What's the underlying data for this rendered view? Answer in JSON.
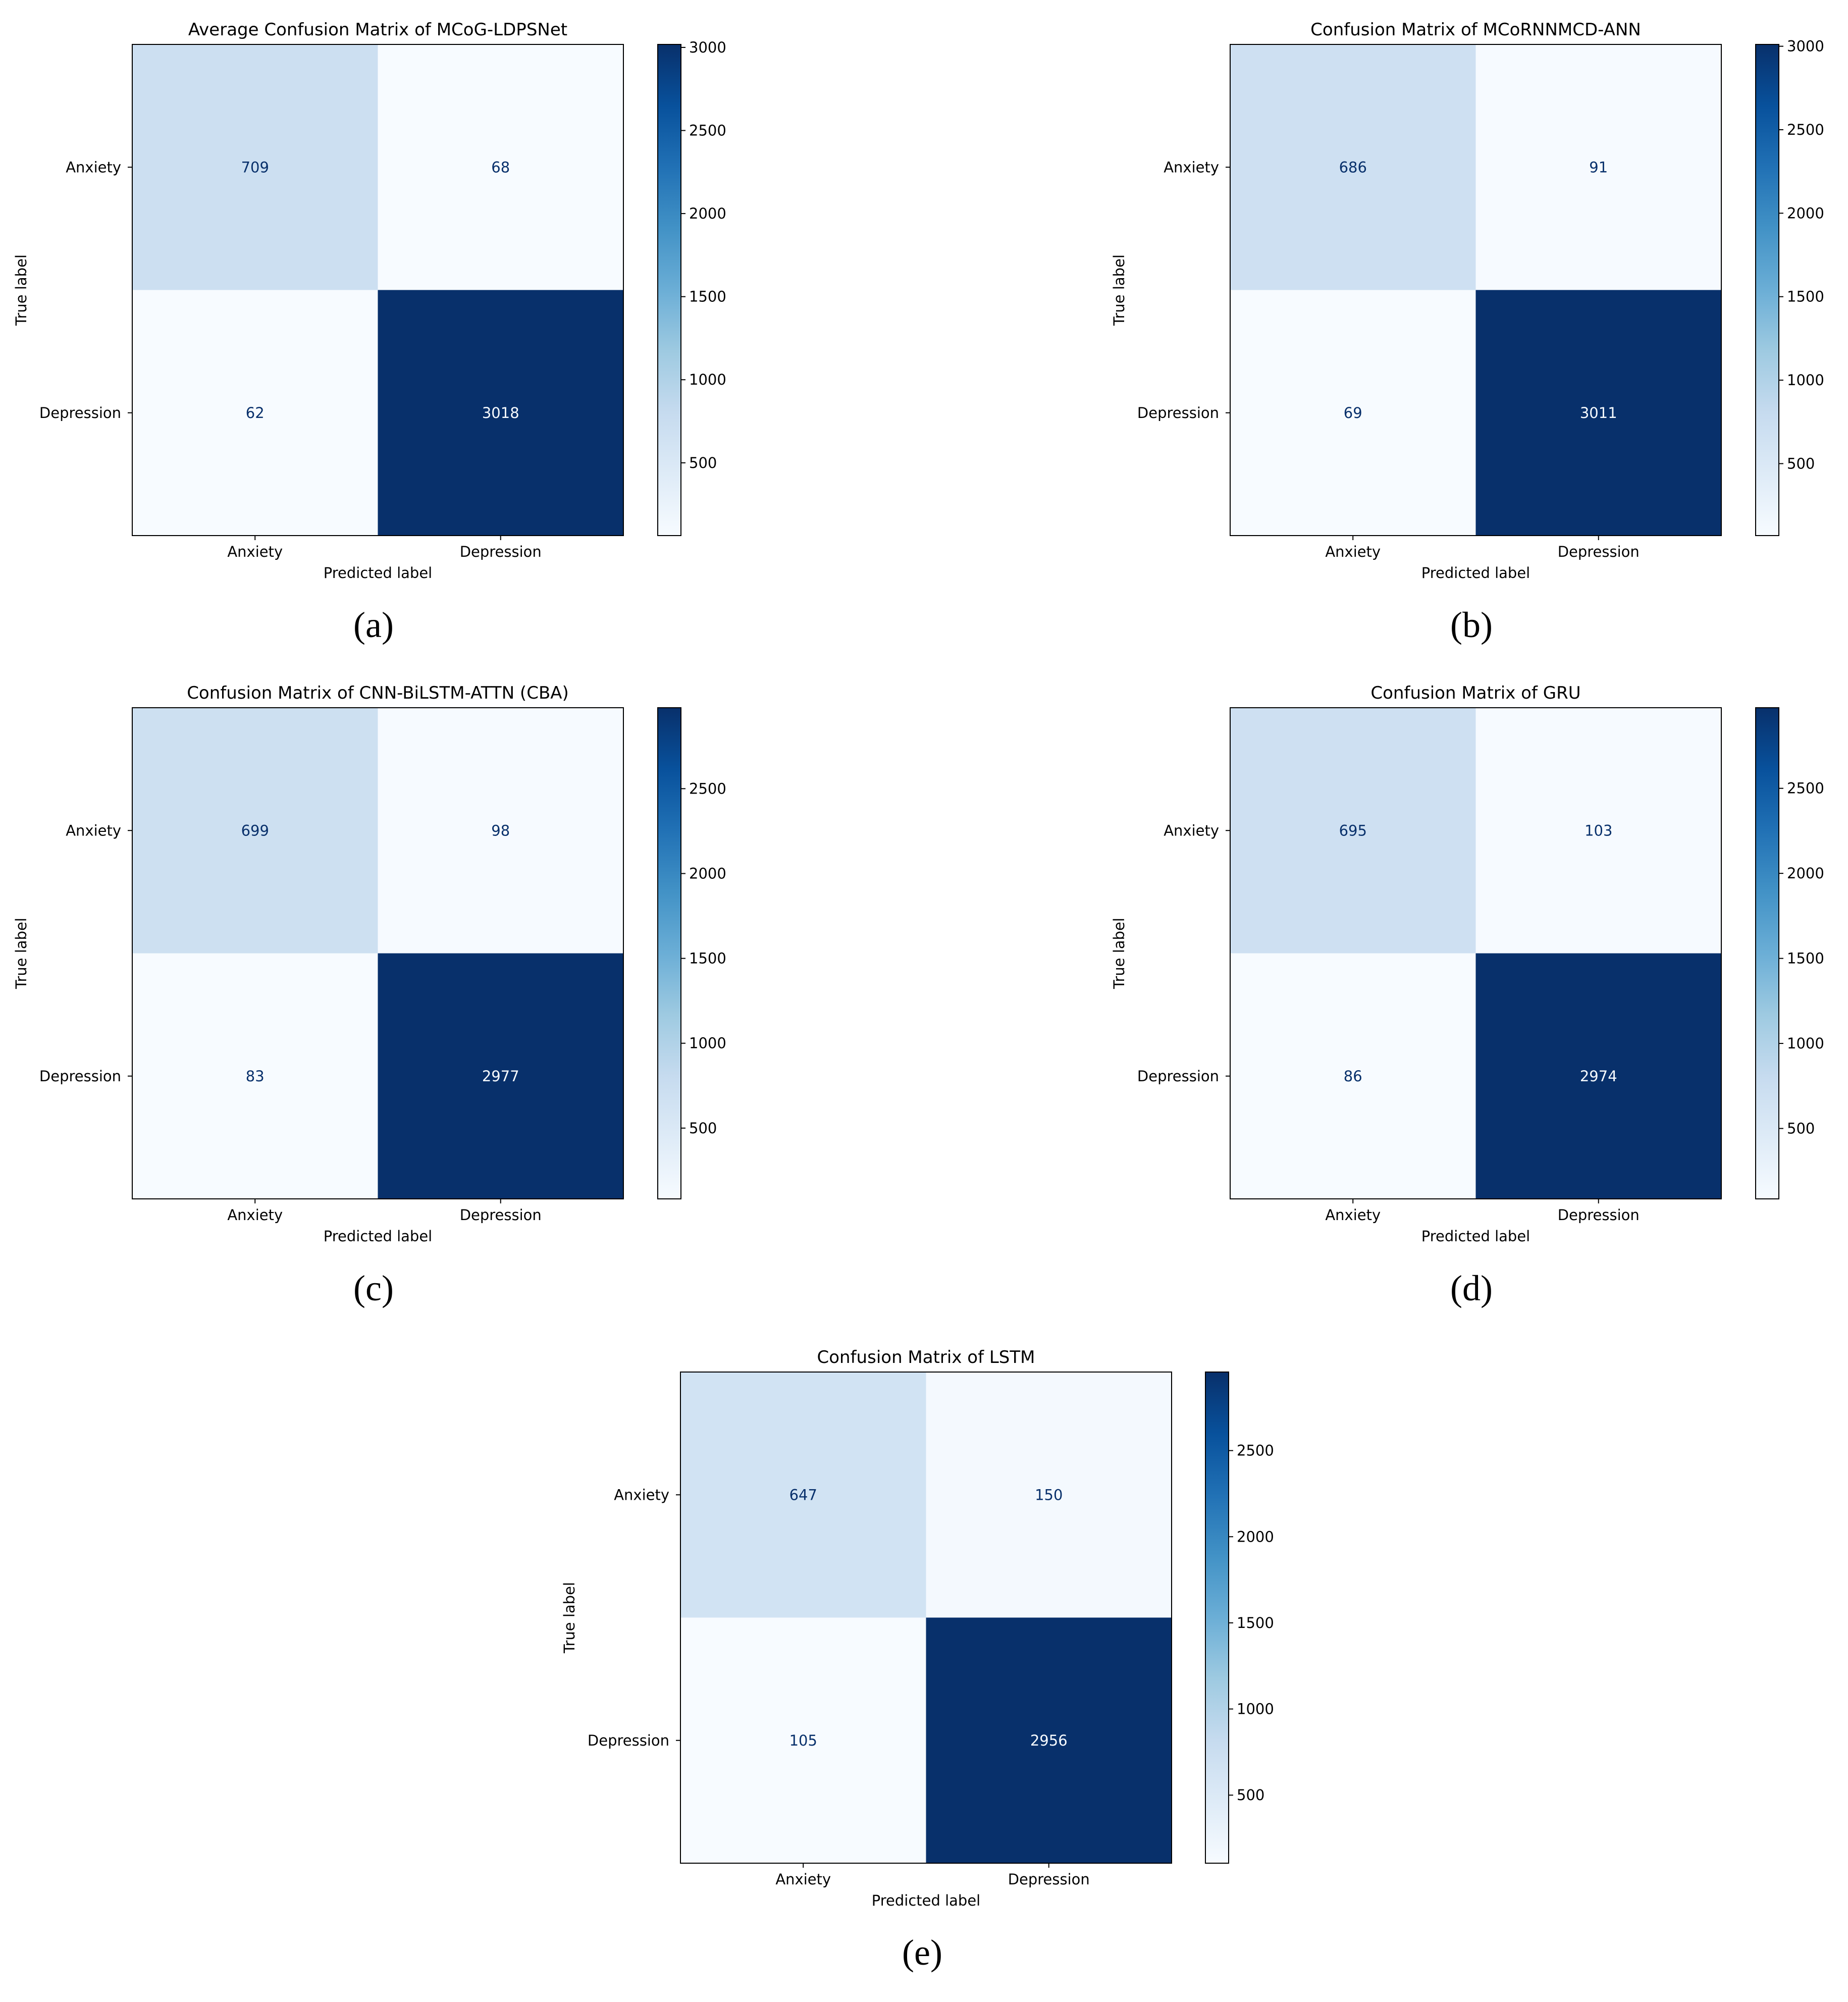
{
  "chart_data": [
    {
      "type": "heatmap",
      "panel_label": "(a)",
      "title": "Average Confusion Matrix of MCoG-LDPSNet",
      "xlabel": "Predicted label",
      "ylabel": "True label",
      "x_tick_labels": [
        "Anxiety",
        "Depression"
      ],
      "y_tick_labels": [
        "Anxiety",
        "Depression"
      ],
      "matrix": [
        [
          709,
          68
        ],
        [
          62,
          3018
        ]
      ],
      "colorbar": {
        "min": 62,
        "max": 3018,
        "ticks": [
          500,
          1000,
          1500,
          2000,
          2500,
          3000
        ],
        "colormap": "Blues"
      }
    },
    {
      "type": "heatmap",
      "panel_label": "(b)",
      "title": "Confusion Matrix of MCoRNNMCD-ANN",
      "xlabel": "Predicted label",
      "ylabel": "True label",
      "x_tick_labels": [
        "Anxiety",
        "Depression"
      ],
      "y_tick_labels": [
        "Anxiety",
        "Depression"
      ],
      "matrix": [
        [
          686,
          91
        ],
        [
          69,
          3011
        ]
      ],
      "colorbar": {
        "min": 69,
        "max": 3011,
        "ticks": [
          500,
          1000,
          1500,
          2000,
          2500,
          3000
        ],
        "colormap": "Blues"
      }
    },
    {
      "type": "heatmap",
      "panel_label": "(c)",
      "title": "Confusion Matrix of CNN-BiLSTM-ATTN (CBA)",
      "xlabel": "Predicted label",
      "ylabel": "True label",
      "x_tick_labels": [
        "Anxiety",
        "Depression"
      ],
      "y_tick_labels": [
        "Anxiety",
        "Depression"
      ],
      "matrix": [
        [
          699,
          98
        ],
        [
          83,
          2977
        ]
      ],
      "colorbar": {
        "min": 83,
        "max": 2977,
        "ticks": [
          500,
          1000,
          1500,
          2000,
          2500
        ],
        "colormap": "Blues"
      }
    },
    {
      "type": "heatmap",
      "panel_label": "(d)",
      "title": "Confusion Matrix of GRU",
      "xlabel": "Predicted label",
      "ylabel": "True label",
      "x_tick_labels": [
        "Anxiety",
        "Depression"
      ],
      "y_tick_labels": [
        "Anxiety",
        "Depression"
      ],
      "matrix": [
        [
          695,
          103
        ],
        [
          86,
          2974
        ]
      ],
      "colorbar": {
        "min": 86,
        "max": 2974,
        "ticks": [
          500,
          1000,
          1500,
          2000,
          2500
        ],
        "colormap": "Blues"
      }
    },
    {
      "type": "heatmap",
      "panel_label": "(e)",
      "title": "Confusion Matrix of LSTM",
      "xlabel": "Predicted label",
      "ylabel": "True label",
      "x_tick_labels": [
        "Anxiety",
        "Depression"
      ],
      "y_tick_labels": [
        "Anxiety",
        "Depression"
      ],
      "matrix": [
        [
          647,
          150
        ],
        [
          105,
          2956
        ]
      ],
      "colorbar": {
        "min": 105,
        "max": 2956,
        "ticks": [
          500,
          1000,
          1500,
          2000,
          2500
        ],
        "colormap": "Blues"
      }
    }
  ]
}
